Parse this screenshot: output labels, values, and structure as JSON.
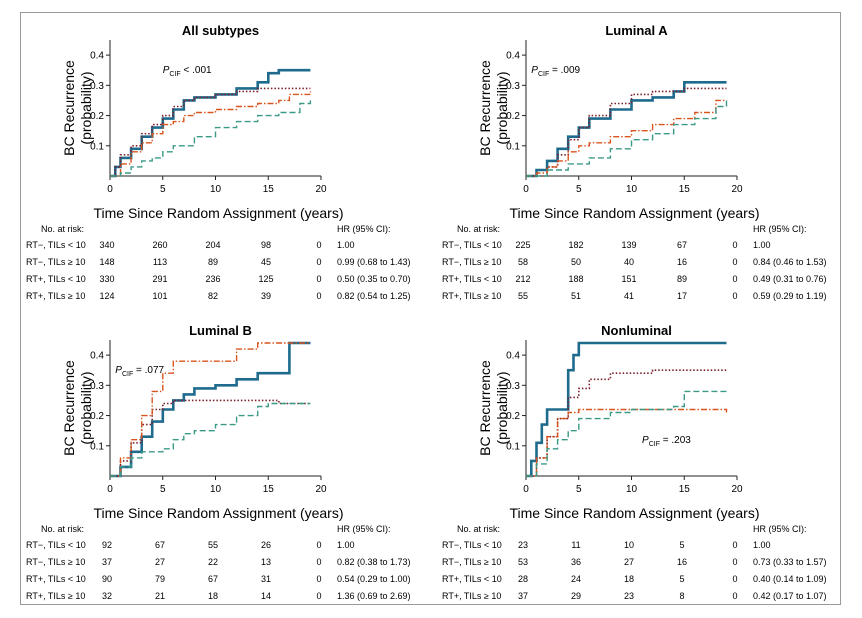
{
  "figure": {
    "y_label_line1": "BC Recurrence",
    "y_label_line2": "(probability)",
    "x_label": "Time Since Random Assignment (years)",
    "at_risk_label": "No. at risk:",
    "hr_header": "HR (95% CI):",
    "group_labels": [
      "RT−, TILs < 10",
      "RT−, TILs ≥ 10",
      "RT+, TILs < 10",
      "RT+, TILs ≥ 10"
    ],
    "colors": {
      "rt_minus_lo": "#1f6b8e",
      "rt_minus_hi": "#7a1f2b",
      "rt_plus_lo": "#d9541e",
      "rt_plus_hi": "#3a9a86",
      "axis": "#222222"
    }
  },
  "panels": [
    {
      "title": "All subtypes",
      "pcif_sub": "CIF",
      "pcif_value": "< .001",
      "at_risk": [
        [
          "340",
          "260",
          "204",
          "98",
          "0"
        ],
        [
          "148",
          "113",
          "89",
          "45",
          "0"
        ],
        [
          "330",
          "291",
          "236",
          "125",
          "0"
        ],
        [
          "124",
          "101",
          "82",
          "39",
          "0"
        ]
      ],
      "hr": [
        "1.00",
        "0.99 (0.68 to 1.43)",
        "0.50 (0.35 to 0.70)",
        "0.82 (0.54 to 1.25)"
      ]
    },
    {
      "title": "Luminal A",
      "pcif_sub": "CIF",
      "pcif_value": "= .009",
      "at_risk": [
        [
          "225",
          "182",
          "139",
          "67",
          "0"
        ],
        [
          "58",
          "50",
          "40",
          "16",
          "0"
        ],
        [
          "212",
          "188",
          "151",
          "89",
          "0"
        ],
        [
          "55",
          "51",
          "41",
          "17",
          "0"
        ]
      ],
      "hr": [
        "1.00",
        "0.84 (0.46 to 1.53)",
        "0.49 (0.31 to 0.76)",
        "0.59 (0.29 to 1.19)"
      ]
    },
    {
      "title": "Luminal B",
      "pcif_sub": "CIF",
      "pcif_value": "= .077",
      "at_risk": [
        [
          "92",
          "67",
          "55",
          "26",
          "0"
        ],
        [
          "37",
          "27",
          "22",
          "13",
          "0"
        ],
        [
          "90",
          "79",
          "67",
          "31",
          "0"
        ],
        [
          "32",
          "21",
          "18",
          "14",
          "0"
        ]
      ],
      "hr": [
        "1.00",
        "0.82 (0.38 to 1.73)",
        "0.54 (0.29 to 1.00)",
        "1.36 (0.69 to 2.69)"
      ]
    },
    {
      "title": "Nonluminal",
      "pcif_sub": "CIF",
      "pcif_value": "= .203",
      "at_risk": [
        [
          "23",
          "11",
          "10",
          "5",
          "0"
        ],
        [
          "53",
          "36",
          "27",
          "16",
          "0"
        ],
        [
          "28",
          "24",
          "18",
          "5",
          "0"
        ],
        [
          "37",
          "29",
          "23",
          "8",
          "0"
        ]
      ],
      "hr": [
        "1.00",
        "0.73 (0.33 to 1.57)",
        "0.40 (0.14 to 1.09)",
        "0.42 (0.17 to 1.07)"
      ]
    }
  ],
  "chart_data": [
    {
      "type": "line",
      "title": "All subtypes",
      "xlabel": "Time Since Random Assignment (years)",
      "ylabel": "BC Recurrence (probability)",
      "xlim": [
        0,
        20
      ],
      "ylim": [
        0,
        0.45
      ],
      "xticks": [
        0,
        5,
        10,
        15,
        20
      ],
      "yticks": [
        0.1,
        0.2,
        0.3,
        0.4
      ],
      "series": [
        {
          "name": "RT−, TILs < 10",
          "x": [
            0,
            0.5,
            1,
            2,
            3,
            4,
            5,
            6,
            7,
            8,
            10,
            12,
            14,
            15,
            16,
            19
          ],
          "y": [
            0,
            0.03,
            0.06,
            0.09,
            0.13,
            0.16,
            0.19,
            0.22,
            0.25,
            0.26,
            0.27,
            0.29,
            0.31,
            0.34,
            0.35,
            0.35
          ]
        },
        {
          "name": "RT−, TILs ≥ 10",
          "x": [
            0,
            0.5,
            1,
            2,
            3,
            4,
            5,
            6,
            7,
            8,
            10,
            12,
            14,
            16,
            19
          ],
          "y": [
            0,
            0.03,
            0.07,
            0.1,
            0.14,
            0.17,
            0.2,
            0.23,
            0.25,
            0.26,
            0.27,
            0.28,
            0.29,
            0.29,
            0.29
          ]
        },
        {
          "name": "RT+, TILs < 10",
          "x": [
            0,
            1,
            2,
            3,
            4,
            5,
            6,
            7,
            8,
            10,
            12,
            14,
            16,
            17,
            19
          ],
          "y": [
            0,
            0.04,
            0.08,
            0.11,
            0.14,
            0.17,
            0.18,
            0.2,
            0.21,
            0.22,
            0.23,
            0.24,
            0.25,
            0.27,
            0.28
          ]
        },
        {
          "name": "RT+, TILs ≥ 10",
          "x": [
            0,
            1,
            2,
            3,
            4,
            5,
            6,
            8,
            10,
            12,
            14,
            16,
            18,
            19
          ],
          "y": [
            0,
            0.01,
            0.03,
            0.05,
            0.06,
            0.08,
            0.1,
            0.13,
            0.16,
            0.18,
            0.2,
            0.21,
            0.24,
            0.25
          ]
        }
      ]
    },
    {
      "type": "line",
      "title": "Luminal A",
      "xlabel": "Time Since Random Assignment (years)",
      "ylabel": "BC Recurrence (probability)",
      "xlim": [
        0,
        20
      ],
      "ylim": [
        0,
        0.45
      ],
      "xticks": [
        0,
        5,
        10,
        15,
        20
      ],
      "yticks": [
        0.1,
        0.2,
        0.3,
        0.4
      ],
      "series": [
        {
          "name": "RT−, TILs < 10",
          "x": [
            0,
            1,
            2,
            3,
            4,
            5,
            6,
            8,
            10,
            12,
            14,
            15,
            19
          ],
          "y": [
            0,
            0.02,
            0.05,
            0.09,
            0.13,
            0.16,
            0.19,
            0.22,
            0.25,
            0.26,
            0.28,
            0.31,
            0.31
          ]
        },
        {
          "name": "RT−, TILs ≥ 10",
          "x": [
            0,
            2,
            3,
            4,
            5,
            6,
            8,
            10,
            12,
            15,
            19
          ],
          "y": [
            0,
            0.03,
            0.07,
            0.12,
            0.16,
            0.2,
            0.24,
            0.27,
            0.28,
            0.29,
            0.29
          ]
        },
        {
          "name": "RT+, TILs < 10",
          "x": [
            0,
            1,
            2,
            3,
            4,
            5,
            6,
            8,
            10,
            12,
            14,
            16,
            18,
            19
          ],
          "y": [
            0,
            0.01,
            0.03,
            0.05,
            0.08,
            0.1,
            0.11,
            0.13,
            0.15,
            0.17,
            0.19,
            0.21,
            0.25,
            0.25
          ]
        },
        {
          "name": "RT+, TILs ≥ 10",
          "x": [
            0,
            2,
            4,
            6,
            8,
            10,
            12,
            14,
            16,
            18,
            19
          ],
          "y": [
            0,
            0.02,
            0.04,
            0.06,
            0.09,
            0.12,
            0.14,
            0.17,
            0.19,
            0.23,
            0.25
          ]
        }
      ]
    },
    {
      "type": "line",
      "title": "Luminal B",
      "xlabel": "Time Since Random Assignment (years)",
      "ylabel": "BC Recurrence (probability)",
      "xlim": [
        0,
        20
      ],
      "ylim": [
        0,
        0.45
      ],
      "xticks": [
        0,
        5,
        10,
        15,
        20
      ],
      "yticks": [
        0.1,
        0.2,
        0.3,
        0.4
      ],
      "series": [
        {
          "name": "RT−, TILs < 10",
          "x": [
            0,
            1,
            2,
            3,
            4,
            5,
            6,
            7,
            8,
            10,
            12,
            14,
            15,
            17,
            19
          ],
          "y": [
            0,
            0.03,
            0.08,
            0.13,
            0.18,
            0.22,
            0.25,
            0.27,
            0.29,
            0.3,
            0.32,
            0.34,
            0.34,
            0.44,
            0.44
          ]
        },
        {
          "name": "RT−, TILs ≥ 10",
          "x": [
            0,
            1,
            2,
            3,
            4,
            5,
            6,
            8,
            10,
            12,
            14,
            16,
            19
          ],
          "y": [
            0,
            0.05,
            0.11,
            0.17,
            0.22,
            0.24,
            0.25,
            0.25,
            0.25,
            0.25,
            0.25,
            0.24,
            0.24
          ]
        },
        {
          "name": "RT+, TILs < 10",
          "x": [
            0,
            1,
            2,
            3,
            4,
            5,
            6,
            7,
            10,
            12,
            14,
            15,
            19
          ],
          "y": [
            0,
            0.06,
            0.12,
            0.2,
            0.28,
            0.34,
            0.38,
            0.38,
            0.38,
            0.42,
            0.44,
            0.44,
            0.44
          ]
        },
        {
          "name": "RT+, TILs ≥ 10",
          "x": [
            0,
            1,
            2,
            3,
            4,
            5,
            6,
            7,
            8,
            10,
            12,
            14,
            15,
            19
          ],
          "y": [
            0,
            0.03,
            0.06,
            0.08,
            0.08,
            0.09,
            0.12,
            0.14,
            0.15,
            0.17,
            0.2,
            0.23,
            0.24,
            0.24
          ]
        }
      ]
    },
    {
      "type": "line",
      "title": "Nonluminal",
      "xlabel": "Time Since Random Assignment (years)",
      "ylabel": "BC Recurrence (probability)",
      "xlim": [
        0,
        20
      ],
      "ylim": [
        0,
        0.45
      ],
      "xticks": [
        0,
        5,
        10,
        15,
        20
      ],
      "yticks": [
        0.1,
        0.2,
        0.3,
        0.4
      ],
      "series": [
        {
          "name": "RT−, TILs < 10",
          "x": [
            0,
            0.5,
            1,
            1.5,
            2,
            3,
            4,
            4.5,
            5,
            10,
            15,
            19
          ],
          "y": [
            0,
            0.05,
            0.11,
            0.17,
            0.22,
            0.22,
            0.35,
            0.4,
            0.44,
            0.44,
            0.44,
            0.44
          ]
        },
        {
          "name": "RT−, TILs ≥ 10",
          "x": [
            0,
            1,
            2,
            3,
            4,
            5,
            6,
            8,
            10,
            12,
            14,
            16,
            19
          ],
          "y": [
            0,
            0.06,
            0.13,
            0.19,
            0.26,
            0.29,
            0.32,
            0.34,
            0.34,
            0.35,
            0.35,
            0.35,
            0.35
          ]
        },
        {
          "name": "RT+, TILs < 10",
          "x": [
            0,
            1,
            2,
            3,
            4,
            5,
            8,
            10,
            14,
            16,
            19
          ],
          "y": [
            0,
            0.06,
            0.13,
            0.19,
            0.21,
            0.22,
            0.22,
            0.22,
            0.22,
            0.22,
            0.21
          ]
        },
        {
          "name": "RT+, TILs ≥ 10",
          "x": [
            0,
            1,
            2,
            3,
            4,
            5,
            8,
            10,
            14,
            15,
            19
          ],
          "y": [
            0,
            0.04,
            0.09,
            0.12,
            0.15,
            0.19,
            0.21,
            0.22,
            0.23,
            0.28,
            0.28
          ]
        }
      ]
    }
  ]
}
